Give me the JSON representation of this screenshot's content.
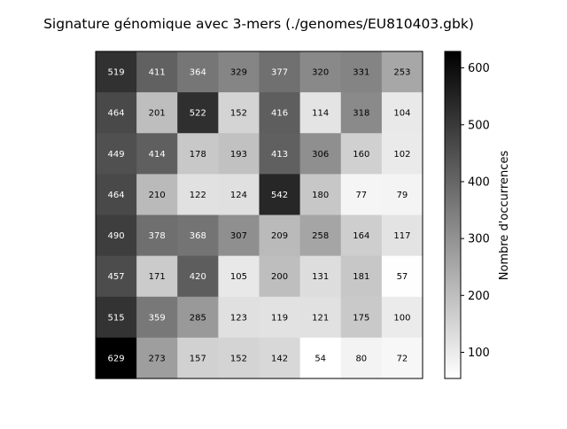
{
  "chart_data": {
    "type": "heatmap",
    "title": "Signature génomique avec 3-mers (./genomes/EU810403.gbk)",
    "colorbar_label": "Nombre d'occurrences",
    "colorbar_ticks": [
      100,
      200,
      300,
      400,
      500,
      600
    ],
    "color_range": [
      54,
      629
    ],
    "colormap": "gray_r",
    "grid": false,
    "values": [
      [
        519,
        411,
        364,
        329,
        377,
        320,
        331,
        253
      ],
      [
        464,
        201,
        522,
        152,
        416,
        114,
        318,
        104
      ],
      [
        449,
        414,
        178,
        193,
        413,
        306,
        160,
        102
      ],
      [
        464,
        210,
        122,
        124,
        542,
        180,
        77,
        79
      ],
      [
        490,
        378,
        368,
        307,
        209,
        258,
        164,
        117
      ],
      [
        457,
        171,
        420,
        105,
        200,
        131,
        181,
        57
      ],
      [
        515,
        359,
        285,
        123,
        119,
        121,
        175,
        100
      ],
      [
        629,
        273,
        157,
        152,
        142,
        54,
        80,
        72
      ]
    ]
  }
}
